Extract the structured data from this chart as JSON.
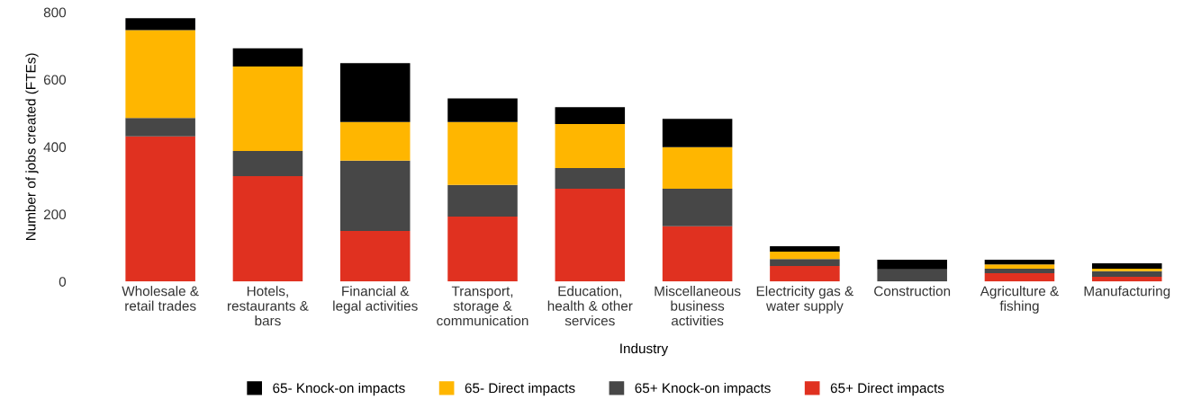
{
  "chart_data": {
    "type": "bar",
    "stacked": true,
    "xlabel": "Industry",
    "ylabel": "Number of jobs created (FTEs)",
    "categories": [
      "Wholesale &\nretail trades",
      "Hotels,\nrestaurants &\nbars",
      "Financial &\nlegal activities",
      "Transport,\nstorage &\ncommunication",
      "Education,\nhealth & other\nservices",
      "Miscellaneous\nbusiness\nactivities",
      "Electricity gas &\nwater supply",
      "Construction",
      "Agriculture &\nfishing",
      "Manufacturing"
    ],
    "series": [
      {
        "name": "65+ Direct impacts",
        "color": "#e03120",
        "values": [
          431,
          313,
          150,
          193,
          276,
          164,
          46,
          0,
          25,
          14
        ]
      },
      {
        "name": "65+ Knock-on impacts",
        "color": "#474747",
        "values": [
          55,
          75,
          209,
          94,
          61,
          112,
          21,
          36,
          13,
          17
        ]
      },
      {
        "name": "65- Direct impacts",
        "color": "#ffb600",
        "values": [
          261,
          251,
          115,
          187,
          131,
          123,
          22,
          0,
          13,
          7
        ]
      },
      {
        "name": "65- Knock-on impacts",
        "color": "#000000",
        "values": [
          35,
          54,
          175,
          70,
          50,
          84,
          16,
          29,
          14,
          16
        ]
      }
    ],
    "ylim": [
      0,
      800
    ],
    "yticks": [
      0,
      200,
      400,
      600,
      800
    ],
    "grid": false,
    "legend": "bottom"
  }
}
